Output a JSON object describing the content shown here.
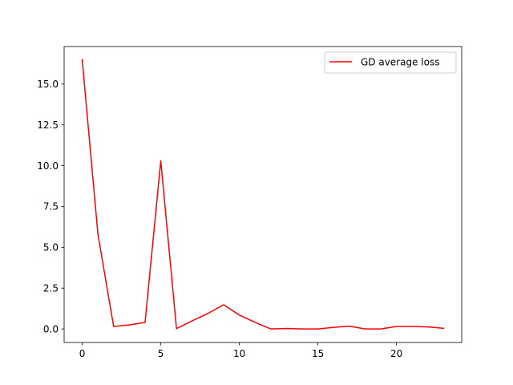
{
  "chart_data": {
    "type": "line",
    "title": "",
    "xlabel": "",
    "ylabel": "",
    "xlim": [
      -1.15,
      24.15
    ],
    "ylim": [
      -0.83,
      17.3
    ],
    "xticks": [
      0,
      5,
      10,
      15,
      20
    ],
    "yticks": [
      0.0,
      2.5,
      5.0,
      7.5,
      10.0,
      12.5,
      15.0
    ],
    "xtick_labels": [
      "0",
      "5",
      "10",
      "15",
      "20"
    ],
    "ytick_labels": [
      "0.0",
      "2.5",
      "5.0",
      "7.5",
      "10.0",
      "12.5",
      "15.0"
    ],
    "grid": false,
    "legend_position": "top-right",
    "series": [
      {
        "name": "GD average loss",
        "color": "#ff0000",
        "x": [
          0,
          1,
          2,
          3,
          4,
          5,
          6,
          7,
          8,
          9,
          10,
          11,
          12,
          13,
          14,
          15,
          16,
          17,
          18,
          19,
          20,
          21,
          22,
          23
        ],
        "y": [
          16.5,
          5.8,
          0.15,
          0.25,
          0.4,
          10.3,
          0.02,
          0.5,
          0.95,
          1.48,
          0.85,
          0.4,
          0.0,
          0.03,
          0.0,
          0.0,
          0.1,
          0.17,
          0.0,
          0.0,
          0.15,
          0.15,
          0.12,
          0.04
        ]
      }
    ]
  }
}
